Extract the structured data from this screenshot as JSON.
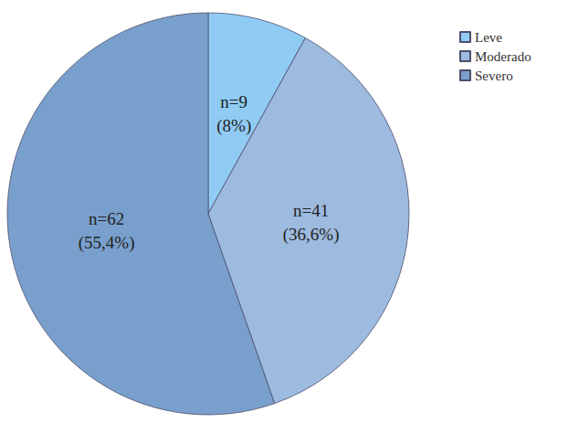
{
  "chart_data": {
    "type": "pie",
    "categories": [
      "Leve",
      "Moderado",
      "Severo"
    ],
    "values": [
      9,
      41,
      62
    ],
    "value_labels": [
      "n=9",
      "n=41",
      "n=62"
    ],
    "percents": [
      8,
      36.6,
      55.4
    ],
    "percent_labels": [
      "(8%)",
      "(36,6%)",
      "(55,4%)"
    ],
    "colors": [
      "#90cbf4",
      "#9dbadf",
      "#79a0cd"
    ],
    "data_labels": true,
    "legend": "top-right"
  }
}
